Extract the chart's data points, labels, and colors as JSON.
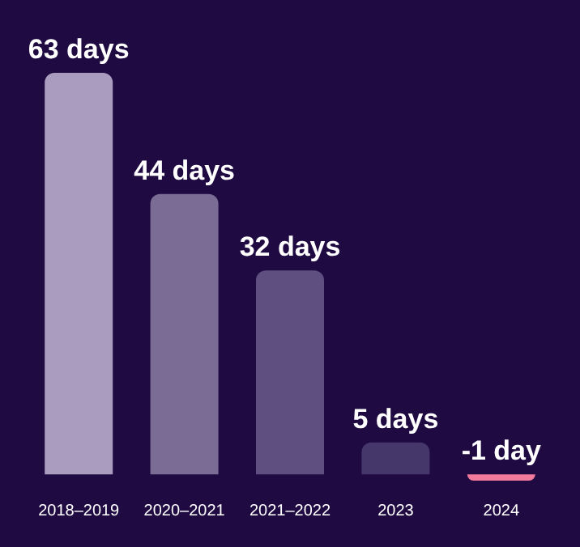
{
  "chart_data": {
    "type": "bar",
    "categories": [
      "2018–2019",
      "2020–2021",
      "2021–2022",
      "2023",
      "2024"
    ],
    "values": [
      63,
      44,
      32,
      5,
      -1
    ],
    "colors": [
      "#a99cbf",
      "#7b6c96",
      "#5e4f80",
      "#45376a",
      "#f27a9c"
    ],
    "value_labels": [
      "63 days",
      "44 days",
      "32 days",
      "5 days",
      "-1 day"
    ]
  }
}
